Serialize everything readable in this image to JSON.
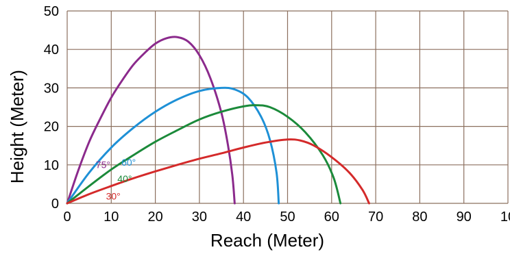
{
  "chart_data": {
    "type": "line",
    "title": "",
    "xlabel": "Reach (Meter)",
    "ylabel": "Height (Meter)",
    "xlim": [
      0,
      100
    ],
    "ylim": [
      0,
      50
    ],
    "x_ticks": [
      "0",
      "10",
      "20",
      "30",
      "40",
      "50",
      "60",
      "70",
      "80",
      "90",
      "10"
    ],
    "y_ticks": [
      "0",
      "10",
      "20",
      "30",
      "40",
      "50"
    ],
    "grid": true,
    "grid_color": "#8B6F5E",
    "series": [
      {
        "name": "75°",
        "color": "#8B2A8C",
        "label_x": 6.5,
        "label_y": 9.2,
        "points": [
          [
            0,
            0
          ],
          [
            2.5,
            8.5
          ],
          [
            5,
            16
          ],
          [
            7.5,
            22
          ],
          [
            10,
            27.5
          ],
          [
            12.5,
            32
          ],
          [
            15,
            36
          ],
          [
            17.5,
            39
          ],
          [
            20,
            41.5
          ],
          [
            22.5,
            42.9
          ],
          [
            25,
            43.2
          ],
          [
            27.5,
            42
          ],
          [
            30,
            38.5
          ],
          [
            32.5,
            32.5
          ],
          [
            35,
            23.5
          ],
          [
            36.5,
            15
          ],
          [
            37.5,
            7
          ],
          [
            38,
            0
          ]
        ]
      },
      {
        "name": "60°",
        "color": "#1E90D6",
        "label_x": 12.3,
        "label_y": 9.8,
        "points": [
          [
            0,
            0
          ],
          [
            5,
            8
          ],
          [
            10,
            14.5
          ],
          [
            15,
            19.6
          ],
          [
            20,
            23.8
          ],
          [
            25,
            27
          ],
          [
            30,
            29.2
          ],
          [
            35,
            30
          ],
          [
            38,
            29.6
          ],
          [
            41,
            27.5
          ],
          [
            44,
            22.5
          ],
          [
            46,
            16.5
          ],
          [
            47.5,
            8
          ],
          [
            48,
            0
          ]
        ]
      },
      {
        "name": "40°",
        "color": "#1B8A3A",
        "label_x": 11.4,
        "label_y": 5.5,
        "points": [
          [
            0,
            0
          ],
          [
            5,
            4.5
          ],
          [
            10,
            8.8
          ],
          [
            15,
            12.5
          ],
          [
            20,
            16
          ],
          [
            25,
            19
          ],
          [
            30,
            21.8
          ],
          [
            35,
            23.8
          ],
          [
            40,
            25.2
          ],
          [
            43,
            25.5
          ],
          [
            46,
            25
          ],
          [
            50,
            22.5
          ],
          [
            54,
            18.5
          ],
          [
            58,
            12.5
          ],
          [
            60.5,
            6.5
          ],
          [
            62,
            0
          ]
        ]
      },
      {
        "name": "30°",
        "color": "#D42A2A",
        "label_x": 8.8,
        "label_y": 1,
        "points": [
          [
            0,
            0
          ],
          [
            5,
            2.4
          ],
          [
            10,
            4.5
          ],
          [
            15,
            6.5
          ],
          [
            20,
            8.3
          ],
          [
            25,
            10
          ],
          [
            30,
            11.6
          ],
          [
            35,
            13
          ],
          [
            40,
            14.5
          ],
          [
            45,
            15.8
          ],
          [
            50,
            16.6
          ],
          [
            53,
            16.3
          ],
          [
            56,
            15
          ],
          [
            60,
            12
          ],
          [
            64,
            8
          ],
          [
            67,
            3.5
          ],
          [
            68.5,
            0
          ]
        ]
      }
    ]
  }
}
